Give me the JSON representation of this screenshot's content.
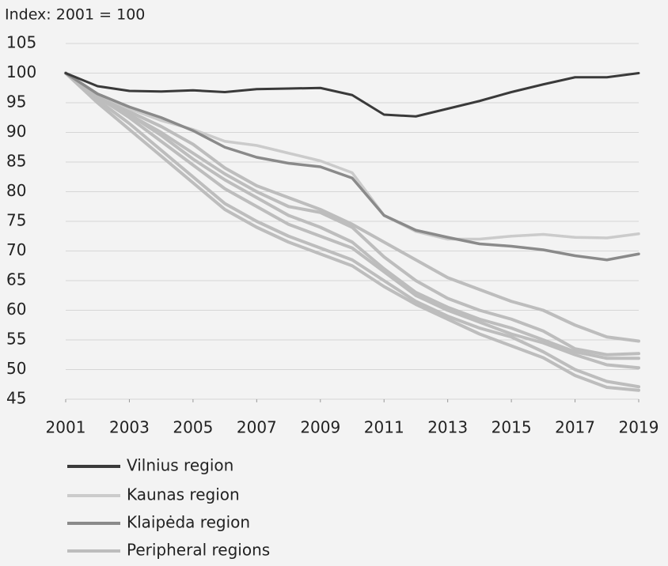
{
  "chart_data": {
    "type": "line",
    "title": "Index: 2001 = 100",
    "x": [
      2001,
      2002,
      2003,
      2004,
      2005,
      2006,
      2007,
      2008,
      2009,
      2010,
      2011,
      2012,
      2013,
      2014,
      2015,
      2016,
      2017,
      2018,
      2019
    ],
    "xlim": [
      2001,
      2019
    ],
    "xticks": [
      2001,
      2003,
      2005,
      2007,
      2009,
      2011,
      2013,
      2015,
      2017,
      2019
    ],
    "ylim": [
      45,
      105
    ],
    "yticks": [
      45,
      50,
      55,
      60,
      65,
      70,
      75,
      80,
      85,
      90,
      95,
      100,
      105
    ],
    "grid": true,
    "series": [
      {
        "name": "Vilnius region",
        "color": "#3a3a3a",
        "values": [
          100,
          97.8,
          97,
          96.9,
          97.1,
          96.8,
          97.3,
          97.4,
          97.5,
          96.3,
          93,
          92.7,
          94,
          95.3,
          96.8,
          98.1,
          99.3,
          99.3,
          100
        ]
      },
      {
        "name": "Kaunas region",
        "color": "#cbcbcb",
        "values": [
          100,
          96.5,
          94,
          92,
          90.5,
          88.5,
          87.8,
          86.5,
          85.2,
          83.2,
          76,
          73.3,
          72,
          72,
          72.5,
          72.8,
          72.3,
          72.2,
          72.9
        ]
      },
      {
        "name": "Klaipėda region",
        "color": "#8a8a8a",
        "values": [
          100,
          96.5,
          94.3,
          92.5,
          90.3,
          87.5,
          85.8,
          84.8,
          84.2,
          82.3,
          76,
          73.5,
          72.3,
          71.2,
          70.8,
          70.2,
          69.2,
          68.5,
          69.5
        ]
      },
      {
        "name": "Peripheral regions",
        "color": "#bdbdbd",
        "lines": [
          [
            100,
            96,
            93.5,
            91,
            88,
            84,
            81,
            79,
            77,
            74.5,
            71.5,
            68.5,
            65.5,
            63.5,
            61.5,
            60,
            57.5,
            55.5,
            54.8
          ],
          [
            100,
            96,
            93,
            90,
            86.5,
            83,
            80,
            77.5,
            76.5,
            74,
            69,
            65,
            62,
            60,
            58.5,
            56.5,
            53.5,
            52.5,
            52.7
          ],
          [
            100,
            96,
            93,
            89.5,
            85.5,
            82,
            79,
            76,
            74,
            71.5,
            67,
            63,
            60.5,
            58.5,
            57,
            55,
            53,
            51.9,
            51.9
          ],
          [
            100,
            96,
            92.5,
            88.5,
            84.5,
            80.5,
            77.5,
            74.5,
            72.5,
            70.5,
            66.5,
            62.5,
            60,
            58,
            56,
            54.5,
            52.5,
            50.8,
            50.3
          ],
          [
            100,
            95.5,
            91.5,
            87,
            82.5,
            78,
            75,
            72.5,
            70.5,
            68.5,
            65,
            61.5,
            59,
            57,
            55.5,
            53,
            50,
            48,
            47.1
          ],
          [
            100,
            95,
            90.5,
            86,
            81.5,
            77,
            74,
            71.5,
            69.5,
            67.5,
            64,
            61,
            58.5,
            56,
            54,
            52,
            49,
            47,
            46.5
          ]
        ]
      }
    ]
  }
}
